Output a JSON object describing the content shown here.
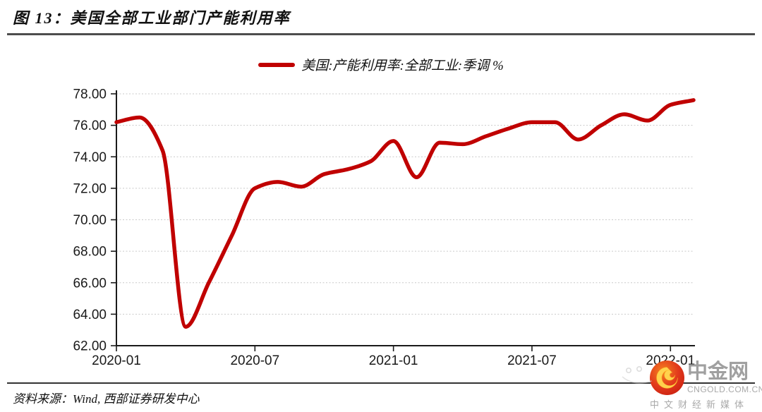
{
  "header": {
    "title": "图 13：美国全部工业部门产能利用率"
  },
  "legend": {
    "label": "美国:产能利用率:全部工业:季调 %",
    "color": "#c00000"
  },
  "chart_data": {
    "type": "line",
    "title": "美国全部工业部门产能利用率",
    "x": [
      "2020-01",
      "2020-02",
      "2020-03",
      "2020-04",
      "2020-05",
      "2020-06",
      "2020-07",
      "2020-08",
      "2020-09",
      "2020-10",
      "2020-11",
      "2020-12",
      "2021-01",
      "2021-02",
      "2021-03",
      "2021-04",
      "2021-05",
      "2021-06",
      "2021-07",
      "2021-08",
      "2021-09",
      "2021-10",
      "2021-11",
      "2021-12",
      "2022-01",
      "2022-02"
    ],
    "series": [
      {
        "name": "美国:产能利用率:全部工业:季调 %",
        "color": "#c00000",
        "values": [
          76.2,
          76.5,
          74.4,
          63.2,
          66.0,
          69.0,
          72.0,
          72.4,
          72.1,
          72.9,
          73.2,
          73.7,
          75.0,
          72.7,
          74.9,
          74.8,
          75.3,
          75.8,
          76.2,
          76.2,
          75.1,
          76.0,
          76.7,
          76.3,
          77.3,
          77.6
        ]
      }
    ],
    "ylim": [
      62,
      78
    ],
    "yticks": [
      62,
      64,
      66,
      68,
      70,
      72,
      74,
      76,
      78
    ],
    "ytick_labels": [
      "62.00",
      "64.00",
      "66.00",
      "68.00",
      "70.00",
      "72.00",
      "74.00",
      "76.00",
      "78.00"
    ],
    "xtick_indices": [
      0,
      6,
      12,
      18,
      24
    ],
    "xtick_labels": [
      "2020-01",
      "2020-07",
      "2021-01",
      "2021-07",
      "2022-01"
    ],
    "grid": "horizontal-dotted",
    "legend_position": "top-center"
  },
  "source": {
    "text": "资料来源：Wind, 西部证券研发中心"
  },
  "watermark": {
    "site_name": "中金网",
    "domain": "CNGOLD.COM.CN",
    "tagline": "中文财经新媒体",
    "logo_outer_color": "#e23a1c",
    "logo_swirl_color": "#ffd24d",
    "text_color": "#a9a9a9"
  }
}
